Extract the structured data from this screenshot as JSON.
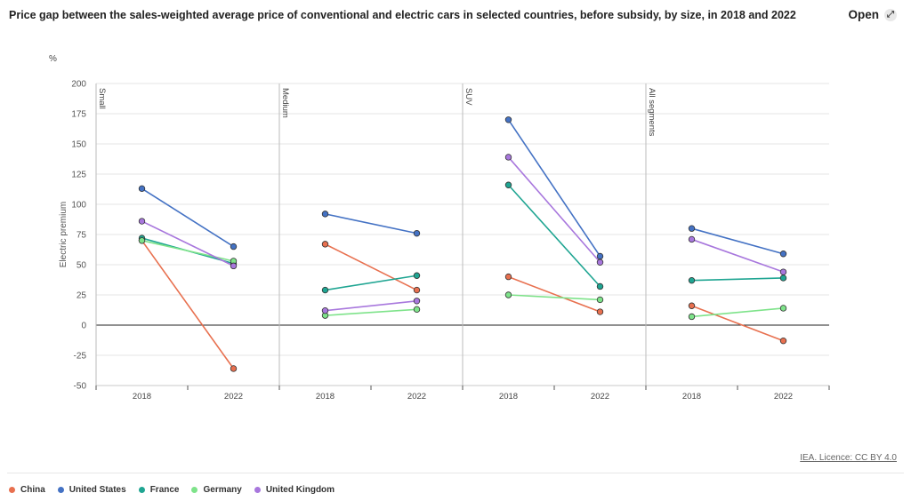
{
  "header": {
    "title": "Price gap between the sales-weighted average price of conventional and electric cars in selected countries, before subsidy, by size, in 2018 and 2022",
    "open_label": "Open",
    "open_icon": "expand-icon"
  },
  "licence": "IEA. Licence: CC BY 4.0",
  "colors": {
    "China": "#e8704f",
    "United States": "#4472c4",
    "France": "#1fa592",
    "Germany": "#7ee38a",
    "United Kingdom": "#a877dd"
  },
  "chart_data": {
    "type": "line",
    "title": "Price gap between the sales-weighted average price of conventional and electric cars in selected countries, before subsidy, by size, in 2018 and 2022",
    "unit": "%",
    "ylabel": "Electric premium",
    "xlabel": "",
    "ylim": [
      -50,
      200
    ],
    "yticks": [
      200,
      175,
      150,
      125,
      100,
      75,
      50,
      25,
      0,
      -25,
      -50
    ],
    "x": [
      "2018",
      "2022"
    ],
    "legend_position": "bottom",
    "panels": [
      {
        "name": "Small",
        "series": [
          {
            "name": "China",
            "values": [
              70,
              -36
            ]
          },
          {
            "name": "United States",
            "values": [
              113,
              65
            ]
          },
          {
            "name": "France",
            "values": [
              72,
              51
            ]
          },
          {
            "name": "Germany",
            "values": [
              70,
              53
            ]
          },
          {
            "name": "United Kingdom",
            "values": [
              86,
              49
            ]
          }
        ]
      },
      {
        "name": "Medium",
        "series": [
          {
            "name": "China",
            "values": [
              67,
              29
            ]
          },
          {
            "name": "United States",
            "values": [
              92,
              76
            ]
          },
          {
            "name": "France",
            "values": [
              29,
              41
            ]
          },
          {
            "name": "Germany",
            "values": [
              8,
              13
            ]
          },
          {
            "name": "United Kingdom",
            "values": [
              12,
              20
            ]
          }
        ]
      },
      {
        "name": "SUV",
        "series": [
          {
            "name": "China",
            "values": [
              40,
              11
            ]
          },
          {
            "name": "United States",
            "values": [
              170,
              57
            ]
          },
          {
            "name": "France",
            "values": [
              116,
              32
            ]
          },
          {
            "name": "Germany",
            "values": [
              25,
              21
            ]
          },
          {
            "name": "United Kingdom",
            "values": [
              139,
              52
            ]
          }
        ]
      },
      {
        "name": "All segments",
        "series": [
          {
            "name": "China",
            "values": [
              16,
              -13
            ]
          },
          {
            "name": "United States",
            "values": [
              80,
              59
            ]
          },
          {
            "name": "France",
            "values": [
              37,
              39
            ]
          },
          {
            "name": "Germany",
            "values": [
              7,
              14
            ]
          },
          {
            "name": "United Kingdom",
            "values": [
              71,
              44
            ]
          }
        ]
      }
    ]
  },
  "legend": [
    {
      "label": "China"
    },
    {
      "label": "United States"
    },
    {
      "label": "France"
    },
    {
      "label": "Germany"
    },
    {
      "label": "United Kingdom"
    }
  ]
}
